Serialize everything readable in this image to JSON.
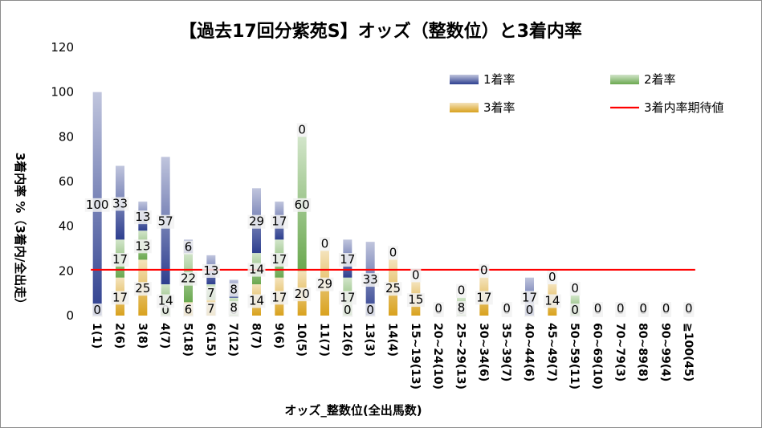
{
  "chart_data": {
    "type": "bar",
    "stacked": true,
    "title": "【過去17回分紫苑S】オッズ（整数位）と3着内率",
    "xlabel": "オッズ_整数位(全出馬数)",
    "ylabel": "3着内率 %（3着内/全出走）",
    "ylim": [
      0,
      120
    ],
    "yticks": [
      0,
      20,
      40,
      60,
      80,
      100,
      120
    ],
    "grid": false,
    "legend_position": "top-right",
    "categories": [
      "1(1)",
      "2(6)",
      "3(8)",
      "4(7)",
      "5(18)",
      "6(15)",
      "7(12)",
      "8(7)",
      "9(6)",
      "10(5)",
      "11(7)",
      "12(6)",
      "13(3)",
      "14(4)",
      "15~19(13)",
      "20~24(10)",
      "25~29(13)",
      "30~34(6)",
      "35~39(7)",
      "40~44(6)",
      "45~49(7)",
      "50~59(11)",
      "60~69(10)",
      "70~79(3)",
      "80~89(8)",
      "90~99(4)",
      "≧100(45)"
    ],
    "series": [
      {
        "name": "3着率",
        "color": "#d9a21e",
        "values": [
          0,
          17,
          25,
          0,
          6,
          7,
          0,
          14,
          17,
          20,
          29,
          0,
          0,
          25,
          15,
          0,
          0,
          17,
          0,
          0,
          14,
          0,
          0,
          0,
          0,
          0,
          0
        ]
      },
      {
        "name": "2着率",
        "color": "#6aa84f",
        "values": [
          0,
          17,
          13,
          14,
          22,
          7,
          8,
          14,
          17,
          60,
          0,
          17,
          0,
          0,
          0,
          0,
          8,
          0,
          0,
          0,
          0,
          9,
          0,
          0,
          0,
          0,
          0
        ]
      },
      {
        "name": "1着率",
        "color": "#2e3f8f",
        "values": [
          100,
          33,
          13,
          57,
          6,
          13,
          8,
          29,
          17,
          0,
          0,
          17,
          33,
          0,
          0,
          0,
          0,
          0,
          0,
          17,
          0,
          0,
          0,
          0,
          0,
          0,
          0
        ]
      }
    ],
    "labels": {
      "3着率": [
        "0",
        "17",
        "25",
        "0",
        "6",
        "7",
        "0",
        "14",
        "17",
        "20",
        "29",
        "0",
        "0",
        "25",
        "15",
        "0",
        "0",
        "17",
        "0",
        "0",
        "14",
        "0",
        "0",
        "0",
        "0",
        "0",
        "0"
      ],
      "2着率": [
        "",
        "17",
        "13",
        "14",
        "22",
        "7",
        "8",
        "14",
        "17",
        "60",
        "",
        "17",
        "",
        "",
        "",
        "",
        "8",
        "",
        "",
        "",
        "",
        "",
        "",
        "",
        "",
        "",
        ""
      ],
      "1着率": [
        "100",
        "33",
        "13",
        "57",
        "6",
        "13",
        "8",
        "29",
        "17",
        "0",
        "0",
        "17",
        "33",
        "0",
        "0",
        "0",
        "0",
        "0",
        "0",
        "17",
        "0",
        "0",
        "0",
        "0",
        "0",
        "0",
        "0"
      ]
    },
    "reference_line": {
      "name": "3着内率期待値",
      "value": 20.5,
      "color": "#ff0000"
    },
    "legend": [
      "1着率",
      "2着率",
      "3着率",
      "3着内率期待値"
    ]
  }
}
